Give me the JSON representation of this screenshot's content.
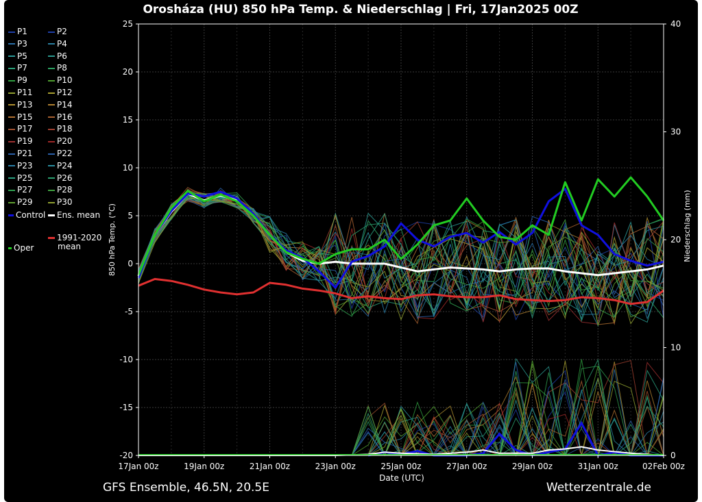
{
  "chart_data": {
    "type": "line",
    "title": "Orosháza  (HU)  850 hPa Temp. & Niederschlag | Fri, 17Jan2025 00Z",
    "xlabel": "Date (UTC)",
    "ylabel": "850 hPa Temp. (°C)",
    "y2label": "Niederschlag (mm)",
    "footer_left": "GFS Ensemble, 46.5N, 20.5E",
    "footer_right": "Wetterzentrale.de",
    "x_ticks": [
      "17Jan 00z",
      "19Jan 00z",
      "21Jan 00z",
      "23Jan 00z",
      "25Jan 00z",
      "27Jan 00z",
      "29Jan 00z",
      "31Jan 00z",
      "02Feb 00z"
    ],
    "x_range_days": [
      0,
      16
    ],
    "ylim": [
      -20,
      25
    ],
    "y_ticks": [
      25,
      20,
      15,
      10,
      5,
      0,
      -5,
      -10,
      -15,
      -20
    ],
    "y2lim": [
      0,
      40
    ],
    "y2_ticks": [
      40,
      30,
      20,
      10,
      0
    ],
    "grid": true,
    "legend": {
      "members": [
        "P1",
        "P2",
        "P3",
        "P4",
        "P5",
        "P6",
        "P7",
        "P8",
        "P9",
        "P10",
        "P11",
        "P12",
        "P13",
        "P14",
        "P15",
        "P16",
        "P17",
        "P18",
        "P19",
        "P20",
        "P21",
        "P22",
        "P23",
        "P24",
        "P25",
        "P26",
        "P27",
        "P28",
        "P29",
        "P30"
      ],
      "member_colors": [
        "#1f3fa8",
        "#1f3fa8",
        "#2a6fa8",
        "#2a7fa0",
        "#2a9a98",
        "#2a9a90",
        "#2aa078",
        "#2aa060",
        "#30a040",
        "#50a030",
        "#90a030",
        "#a8a030",
        "#b09030",
        "#b08030",
        "#b07030",
        "#a86030",
        "#a05030",
        "#a04030",
        "#a03030",
        "#a02828",
        "#2a5fa8",
        "#2a5fa8",
        "#2a7fa8",
        "#2a8fa0",
        "#2aa080",
        "#2aa070",
        "#30a050",
        "#40a040",
        "#60a030",
        "#90a030"
      ],
      "control_label": "Control",
      "mean_label": "Ens. mean",
      "clim_label_1": "1991-2020",
      "clim_label_2": "mean",
      "oper_label": "Oper"
    },
    "series": [
      {
        "name": "Control",
        "color": "#1010e0",
        "width": 3,
        "x": [
          0,
          0.5,
          1,
          1.5,
          2,
          2.5,
          3,
          3.5,
          4,
          4.5,
          5,
          5.5,
          6,
          6.5,
          7,
          7.5,
          8,
          8.5,
          9,
          9.5,
          10,
          10.5,
          11,
          11.5,
          12,
          12.5,
          13,
          13.5,
          14,
          14.5,
          15,
          15.5,
          16
        ],
        "y": [
          -1.5,
          3,
          5.5,
          7.3,
          7,
          7.5,
          6.8,
          5.2,
          3,
          1.4,
          0.6,
          -0.8,
          -2.5,
          0.2,
          0.8,
          1.8,
          4.2,
          2.5,
          1.8,
          2.8,
          3.2,
          2.2,
          3.3,
          2.0,
          3.2,
          6.5,
          7.8,
          4,
          3,
          1,
          0.3,
          -0.2,
          0.2
        ]
      },
      {
        "name": "Oper",
        "color": "#22cc22",
        "width": 3,
        "x": [
          0,
          0.5,
          1,
          1.5,
          2,
          2.5,
          3,
          3.5,
          4,
          4.5,
          5,
          5.5,
          6,
          6.5,
          7,
          7.5,
          8,
          8.5,
          9,
          9.5,
          10,
          10.5,
          11,
          11.5,
          12,
          12.5,
          13,
          13.5,
          14,
          14.5,
          15,
          15.5,
          16
        ],
        "y": [
          -1.2,
          3,
          5.8,
          7.6,
          6.5,
          7.2,
          6.5,
          5,
          3,
          1.2,
          0.5,
          0,
          1,
          1.5,
          1.5,
          2.5,
          0.5,
          2,
          4,
          4.5,
          6.8,
          4.5,
          2.8,
          2.5,
          4,
          3,
          8.5,
          4.5,
          8.8,
          7,
          9,
          7,
          4.5
        ]
      },
      {
        "name": "Ens. mean",
        "color": "#ffffff",
        "width": 3,
        "x": [
          0,
          0.5,
          1,
          1.5,
          2,
          2.5,
          3,
          3.5,
          4,
          4.5,
          5,
          5.5,
          6,
          6.5,
          7,
          7.5,
          8,
          8.5,
          9,
          9.5,
          10,
          10.5,
          11,
          11.5,
          12,
          12.5,
          13,
          13.5,
          14,
          14.5,
          15,
          15.5,
          16
        ],
        "y": [
          -1.3,
          3,
          5.4,
          7.3,
          6.6,
          7.1,
          6.6,
          5,
          3,
          1.2,
          0.3,
          0,
          0.2,
          0,
          0,
          0,
          -0.4,
          -0.8,
          -0.6,
          -0.4,
          -0.5,
          -0.6,
          -0.8,
          -0.6,
          -0.5,
          -0.5,
          -0.8,
          -1.0,
          -1.2,
          -1.0,
          -0.8,
          -0.6,
          -0.2
        ]
      },
      {
        "name": "1991-2020 mean",
        "color": "#e03030",
        "width": 3,
        "x": [
          0,
          0.5,
          1,
          1.5,
          2,
          2.5,
          3,
          3.5,
          4,
          4.5,
          5,
          5.5,
          6,
          6.5,
          7,
          7.5,
          8,
          8.5,
          9,
          9.5,
          10,
          10.5,
          11,
          11.5,
          12,
          12.5,
          13,
          13.5,
          14,
          14.5,
          15,
          15.5,
          16
        ],
        "y": [
          -2.3,
          -1.6,
          -1.8,
          -2.2,
          -2.7,
          -3.0,
          -3.2,
          -3.0,
          -2.0,
          -2.2,
          -2.6,
          -2.8,
          -3.1,
          -3.6,
          -3.4,
          -3.6,
          -3.7,
          -3.3,
          -3.2,
          -3.4,
          -3.5,
          -3.5,
          -3.3,
          -3.7,
          -3.8,
          -3.9,
          -3.8,
          -3.5,
          -3.6,
          -3.8,
          -4.2,
          -4.0,
          -2.8
        ]
      }
    ],
    "precip_series": [
      {
        "name": "Control",
        "color": "#1010e0",
        "width": 3,
        "x": [
          7,
          7.5,
          8,
          8.5,
          9,
          10,
          10.5,
          11,
          11.5,
          12,
          13,
          13.5,
          14,
          14.5,
          15,
          16
        ],
        "y": [
          0,
          0.3,
          0.1,
          0.4,
          0,
          0,
          0.2,
          2,
          0.5,
          0,
          0.6,
          3,
          0,
          0.3,
          0,
          0
        ]
      },
      {
        "name": "Ens. mean",
        "color": "#ffffff",
        "width": 2,
        "x": [
          0,
          6,
          7,
          7.5,
          8,
          9,
          10,
          10.5,
          11,
          12,
          12.5,
          13,
          13.5,
          14,
          15,
          16
        ],
        "y": [
          0,
          0,
          0.1,
          0.3,
          0.2,
          0.1,
          0.3,
          0.5,
          0.2,
          0.2,
          0.5,
          0.6,
          0.8,
          0.5,
          0.2,
          0
        ]
      }
    ]
  }
}
